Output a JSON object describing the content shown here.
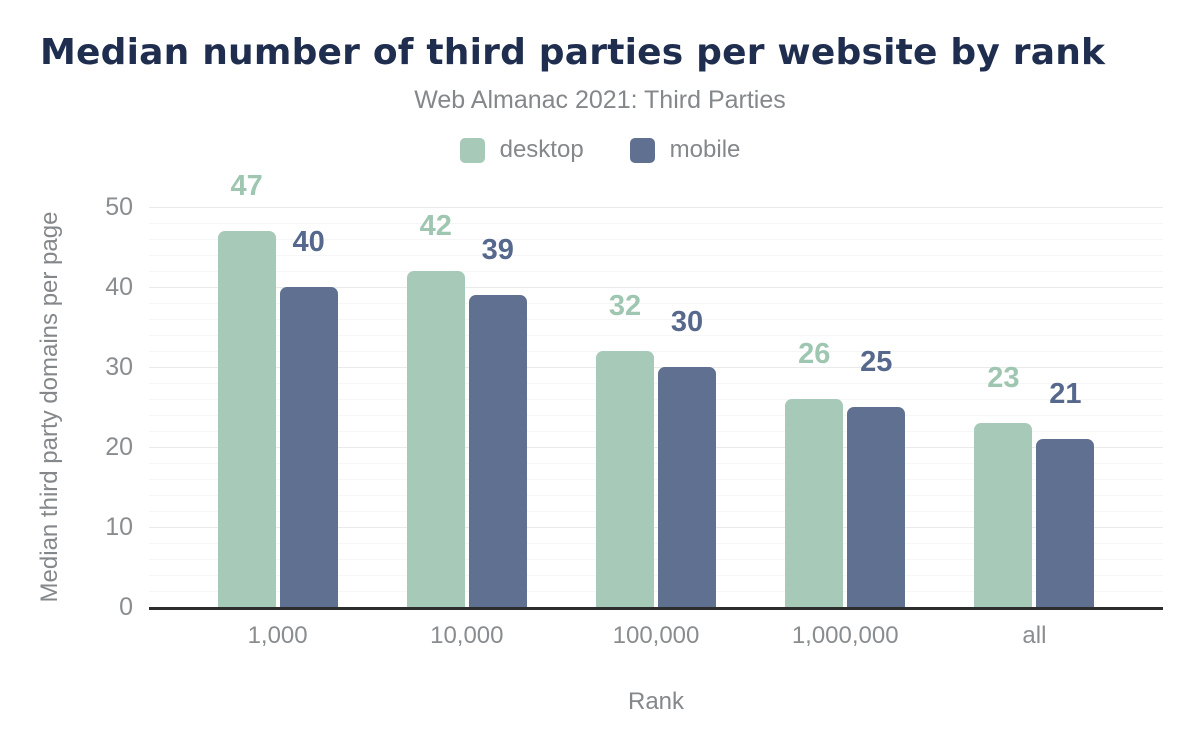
{
  "header": {
    "title": "Median number of third parties per website by rank",
    "subtitle": "Web Almanac 2021: Third Parties"
  },
  "legend": {
    "position": "top",
    "items": [
      {
        "label": "desktop",
        "color": "#a6cab7"
      },
      {
        "label": "mobile",
        "color": "#5f7090"
      }
    ]
  },
  "axes": {
    "y_title": "Median third party domains per page",
    "x_title": "Rank",
    "y_ticks": [
      0,
      10,
      20,
      30,
      40,
      50
    ]
  },
  "chart_data": {
    "type": "bar",
    "title": "Median number of third parties per website by rank",
    "subtitle": "Web Almanac 2021: Third Parties",
    "categories": [
      "1,000",
      "10,000",
      "100,000",
      "1,000,000",
      "all"
    ],
    "series": [
      {
        "name": "desktop",
        "color": "#a6cab7",
        "label_color": "#9fc6b1",
        "values": [
          47,
          42,
          32,
          26,
          23
        ]
      },
      {
        "name": "mobile",
        "color": "#5f7090",
        "label_color": "#56698d",
        "values": [
          40,
          39,
          30,
          25,
          21
        ]
      }
    ],
    "xlabel": "Rank",
    "ylabel": "Median third party domains per page",
    "ylim": [
      0,
      50
    ],
    "yticks": [
      0,
      10,
      20,
      30,
      40,
      50
    ],
    "grid": {
      "orientation": "horizontal",
      "minor_step": 2,
      "major_step": 10
    },
    "legend_position": "top",
    "bar_value_labels": true
  },
  "colors": {
    "title": "#1f2e4e",
    "muted_text": "#84888b",
    "axis_line": "#2d2d2d",
    "grid_minor": "#f6f6f6",
    "grid_major": "#eaeaea",
    "desktop": "#a6cab7",
    "mobile": "#5f7090"
  }
}
